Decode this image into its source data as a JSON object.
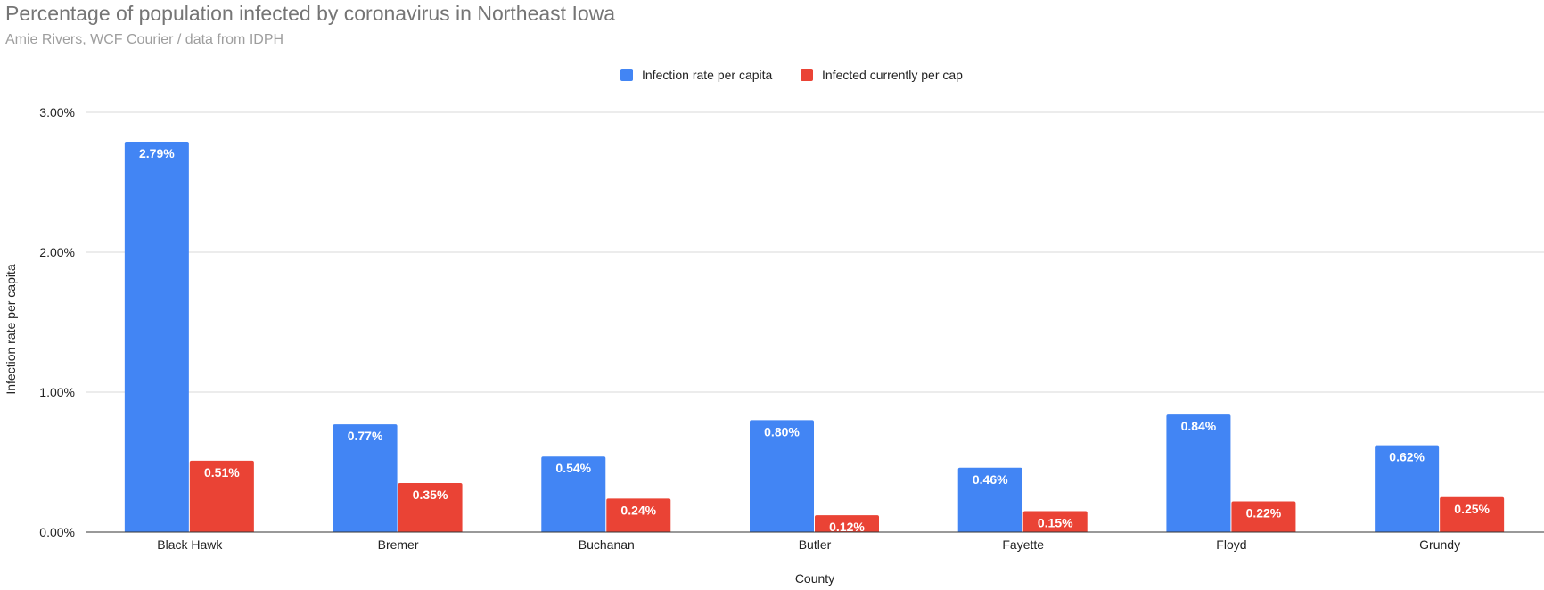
{
  "chart_data": {
    "type": "bar",
    "title": "Percentage of population infected by coronavirus in Northeast Iowa",
    "subtitle": "Amie Rivers, WCF Courier / data from IDPH",
    "xlabel": "County",
    "ylabel": "Infection rate per capita",
    "categories": [
      "Black Hawk",
      "Bremer",
      "Buchanan",
      "Butler",
      "Fayette",
      "Floyd",
      "Grundy"
    ],
    "series": [
      {
        "name": "Infection rate per capita",
        "color": "#4285f4",
        "values": [
          2.79,
          0.77,
          0.54,
          0.8,
          0.46,
          0.84,
          0.62
        ],
        "labels": [
          "2.79%",
          "0.77%",
          "0.54%",
          "0.80%",
          "0.46%",
          "0.84%",
          "0.62%"
        ]
      },
      {
        "name": "Infected currently per cap",
        "color": "#ea4335",
        "values": [
          0.51,
          0.35,
          0.24,
          0.12,
          0.15,
          0.22,
          0.25
        ],
        "labels": [
          "0.51%",
          "0.35%",
          "0.24%",
          "0.12%",
          "0.15%",
          "0.22%",
          "0.25%"
        ]
      }
    ],
    "ylim": [
      0,
      3
    ],
    "yticks": [
      0,
      1,
      2,
      3
    ],
    "ytick_labels": [
      "0.00%",
      "1.00%",
      "2.00%",
      "3.00%"
    ],
    "grid": true,
    "legend_position": "top-center"
  }
}
